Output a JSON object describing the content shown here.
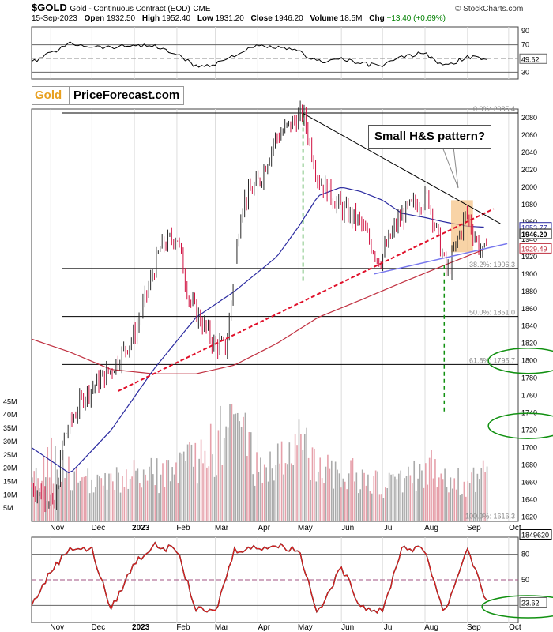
{
  "header": {
    "symbol": "$GOLD",
    "name": "Gold - Continuous Contract (EOD)",
    "exchange": "CME",
    "date": "15-Sep-2023",
    "open_label": "Open",
    "open": "1932.50",
    "high_label": "High",
    "high": "1952.40",
    "low_label": "Low",
    "low": "1931.20",
    "close_label": "Close",
    "close": "1946.20",
    "volume_label": "Volume",
    "volume": "18.5M",
    "chg_label": "Chg",
    "chg": "+13.40 (+0.69%)",
    "credit": "© StockCharts.com"
  },
  "tags": {
    "gold": "Gold",
    "site": "PriceForecast.com"
  },
  "annotation": "Small H&S pattern?",
  "colors": {
    "up": "#2a2a2a",
    "down": "#d01040",
    "ma_blue": "#2a2aa0",
    "ma_red": "#c03040",
    "trend_red": "#e0102a",
    "trend_blue": "#7777ee",
    "green": "#109010",
    "orange": "#f5c080"
  },
  "chart_data": [
    {
      "type": "line",
      "name": "rsi",
      "y_ticks": [
        30,
        50,
        70,
        90
      ],
      "ylim": [
        20,
        96
      ],
      "last_value_label": "49.62",
      "x": [
        "2022-10-18",
        "2022-11-01",
        "2022-11-15",
        "2022-12-01",
        "2022-12-15",
        "2023-01-01",
        "2023-01-15",
        "2023-02-01",
        "2023-02-15",
        "2023-03-01",
        "2023-03-15",
        "2023-04-01",
        "2023-04-15",
        "2023-05-01",
        "2023-05-15",
        "2023-06-01",
        "2023-06-15",
        "2023-07-01",
        "2023-07-15",
        "2023-08-01",
        "2023-08-15",
        "2023-09-01",
        "2023-09-15"
      ],
      "values": [
        44,
        58,
        72,
        68,
        66,
        70,
        68,
        56,
        38,
        42,
        55,
        68,
        66,
        60,
        45,
        50,
        42,
        40,
        52,
        58,
        38,
        52,
        49.62
      ]
    },
    {
      "type": "candlestick",
      "name": "price",
      "y_ticks": [
        1620,
        1640,
        1660,
        1680,
        1700,
        1720,
        1740,
        1760,
        1780,
        1800,
        1820,
        1840,
        1860,
        1880,
        1900,
        1920,
        1940,
        1960,
        1980,
        2000,
        2020,
        2040,
        2060,
        2080
      ],
      "ylim": [
        1615,
        2090
      ],
      "x_ticks": [
        "Nov",
        "Dec",
        "2023",
        "Feb",
        "Mar",
        "Apr",
        "May",
        "Jun",
        "Jul",
        "Aug",
        "Sep",
        "Oct"
      ],
      "x_tick_dates": [
        "2022-11-01",
        "2022-12-01",
        "2023-01-01",
        "2023-02-01",
        "2023-03-01",
        "2023-04-01",
        "2023-05-01",
        "2023-06-01",
        "2023-07-01",
        "2023-08-01",
        "2023-09-01",
        "2023-10-01"
      ],
      "x_range": [
        "2022-10-18",
        "2023-10-08"
      ],
      "close_path": {
        "x": [
          "2022-10-18",
          "2022-11-01",
          "2022-11-03",
          "2022-11-10",
          "2022-11-25",
          "2022-12-15",
          "2023-01-01",
          "2023-01-20",
          "2023-02-01",
          "2023-02-10",
          "2023-02-28",
          "2023-03-09",
          "2023-03-20",
          "2023-04-03",
          "2023-04-13",
          "2023-05-04",
          "2023-05-15",
          "2023-06-01",
          "2023-06-14",
          "2023-06-29",
          "2023-07-12",
          "2023-07-20",
          "2023-08-03",
          "2023-08-17",
          "2023-08-31",
          "2023-09-06",
          "2023-09-13",
          "2023-09-15"
        ],
        "values": [
          1655,
          1640,
          1620,
          1710,
          1760,
          1790,
          1830,
          1930,
          1945,
          1870,
          1820,
          1815,
          1980,
          2010,
          2055,
          2085,
          2010,
          1975,
          1960,
          1915,
          1960,
          1975,
          1990,
          1900,
          1970,
          1945,
          1918,
          1946.2
        ]
      },
      "fib_levels": [
        {
          "label": "0.0%: 2085.4",
          "value": 2085.4
        },
        {
          "label": "38.2%: 1906.3",
          "value": 1906.3
        },
        {
          "label": "50.0%: 1851.0",
          "value": 1851.0
        },
        {
          "label": "61.8%: 1795.7",
          "value": 1795.7
        },
        {
          "label": "100.0%: 1616.3",
          "value": 1616.3
        }
      ],
      "price_labels": [
        {
          "label": "1953.77",
          "value": 1953.77
        },
        {
          "label": "1946.20",
          "value": 1946.2
        },
        {
          "label": "1929.49",
          "value": 1929.49
        },
        {
          "label": "1849620",
          "value": 1600
        }
      ],
      "ma_blue": {
        "x": [
          "2022-10-18",
          "2022-11-15",
          "2022-12-15",
          "2023-01-15",
          "2023-02-15",
          "2023-03-15",
          "2023-04-15",
          "2023-05-01",
          "2023-05-15",
          "2023-06-01",
          "2023-06-15",
          "2023-07-01",
          "2023-07-15",
          "2023-08-01",
          "2023-08-15",
          "2023-09-01",
          "2023-09-15"
        ],
        "values": [
          1700,
          1670,
          1720,
          1790,
          1850,
          1880,
          1920,
          1955,
          1990,
          2000,
          1995,
          1985,
          1970,
          1965,
          1960,
          1955,
          1953.77
        ]
      },
      "ma_red": {
        "x": [
          "2022-10-18",
          "2022-11-15",
          "2022-12-15",
          "2023-01-15",
          "2023-02-15",
          "2023-03-15",
          "2023-04-15",
          "2023-05-15",
          "2023-06-15",
          "2023-07-15",
          "2023-08-15",
          "2023-09-15"
        ],
        "values": [
          1825,
          1810,
          1790,
          1785,
          1785,
          1795,
          1820,
          1850,
          1870,
          1890,
          1910,
          1929.49
        ]
      },
      "trend_red": {
        "x": [
          "2022-12-20",
          "2023-09-20"
        ],
        "values": [
          1765,
          1975
        ]
      },
      "trend_blue": {
        "x": [
          "2023-06-25",
          "2023-09-30"
        ],
        "values": [
          1900,
          1935
        ]
      },
      "trend_black": {
        "x": [
          "2023-05-04",
          "2023-09-25"
        ],
        "values": [
          2085,
          1958
        ]
      },
      "hs_box": {
        "x": [
          "2023-08-20",
          "2023-09-05"
        ],
        "values": [
          1925,
          1985
        ]
      },
      "horizontal_lines": [
        2085.4,
        1906.3,
        1851.0,
        1795.7
      ],
      "vertical_dashed": [
        {
          "x": "2023-05-04",
          "values": [
            2085,
            1890
          ]
        },
        {
          "x": "2023-08-15",
          "values": [
            1910,
            1740
          ]
        }
      ],
      "ellipses": [
        {
          "cx": "2023-10-15",
          "cy": 1800
        },
        {
          "cx": "2023-10-15",
          "cy": 1725
        }
      ]
    },
    {
      "type": "bar",
      "name": "volume",
      "y_ticks_label": [
        "5M",
        "10M",
        "15M",
        "20M",
        "25M",
        "30M",
        "35M",
        "40M",
        "45M"
      ],
      "y_ticks": [
        5,
        10,
        15,
        20,
        25,
        30,
        35,
        40,
        45
      ],
      "ylim": [
        0,
        46
      ],
      "x": [
        "2022-10-18",
        "2022-11-01",
        "2022-12-01",
        "2023-01-01",
        "2023-02-01",
        "2023-03-01",
        "2023-03-15",
        "2023-04-01",
        "2023-05-01",
        "2023-06-01",
        "2023-07-01",
        "2023-08-01",
        "2023-09-01",
        "2023-09-15"
      ],
      "values": [
        14,
        25,
        14,
        18,
        20,
        30,
        45,
        20,
        30,
        20,
        14,
        22,
        15,
        18.5
      ]
    },
    {
      "type": "line",
      "name": "stochastic",
      "y_ticks": [
        20,
        50,
        80
      ],
      "ylim": [
        0,
        100
      ],
      "last_value_label": "23.62",
      "x": [
        "2022-10-18",
        "2022-11-01",
        "2022-11-15",
        "2022-12-01",
        "2022-12-15",
        "2023-01-01",
        "2023-01-15",
        "2023-02-01",
        "2023-02-15",
        "2023-03-01",
        "2023-03-15",
        "2023-04-01",
        "2023-04-15",
        "2023-05-01",
        "2023-05-15",
        "2023-06-01",
        "2023-06-15",
        "2023-07-01",
        "2023-07-15",
        "2023-08-01",
        "2023-08-15",
        "2023-09-01",
        "2023-09-15"
      ],
      "values": [
        20,
        60,
        88,
        85,
        15,
        70,
        90,
        85,
        15,
        12,
        85,
        88,
        90,
        85,
        10,
        65,
        20,
        12,
        88,
        85,
        10,
        88,
        23.62
      ]
    }
  ]
}
